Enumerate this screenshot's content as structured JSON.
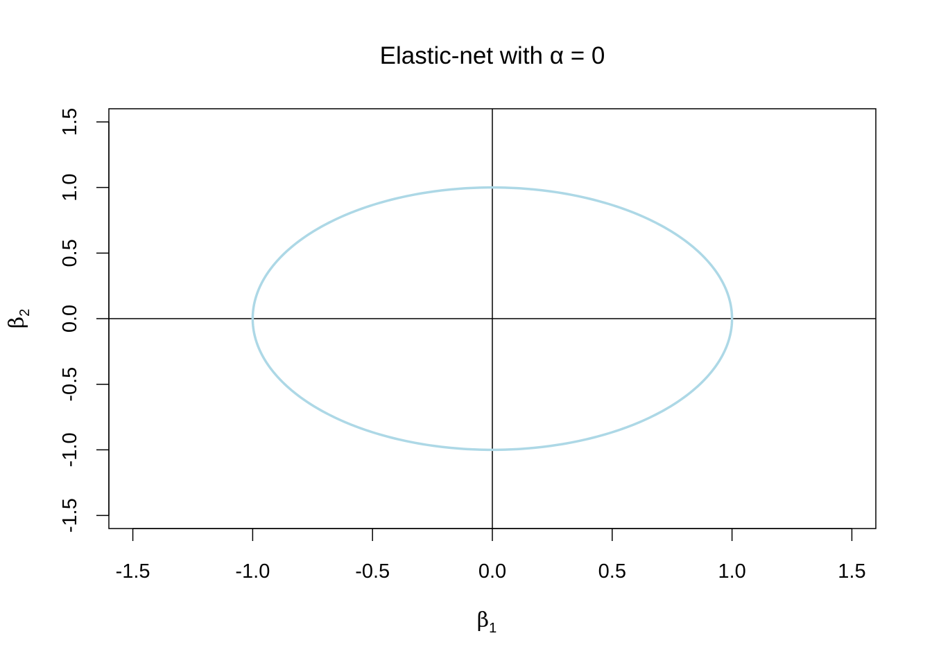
{
  "chart_data": {
    "type": "line",
    "title": "Elastic-net with α = 0",
    "xlabel": "β",
    "xlabel_sub": "1",
    "ylabel": "β",
    "ylabel_sub": "2",
    "xlim": [
      -1.6,
      1.6
    ],
    "ylim": [
      -1.6,
      1.6
    ],
    "xticks": [
      -1.5,
      -1.0,
      -0.5,
      0.0,
      0.5,
      1.0,
      1.5
    ],
    "xtick_labels": [
      "-1.5",
      "-1.0",
      "-0.5",
      "0.0",
      "0.5",
      "1.0",
      "1.5"
    ],
    "yticks": [
      -1.5,
      -1.0,
      -0.5,
      0.0,
      0.5,
      1.0,
      1.5
    ],
    "ytick_labels": [
      "-1.5",
      "-1.0",
      "-0.5",
      "0.0",
      "0.5",
      "1.0",
      "1.5"
    ],
    "grid": false,
    "reference_lines": {
      "x": 0,
      "y": 0
    },
    "series": [
      {
        "shape": "unit circle |β1|^2 + |β2|^2 = 1",
        "color": "#add8e6",
        "x": [
          1.0,
          0.966,
          0.866,
          0.707,
          0.5,
          0.259,
          0.0,
          -0.259,
          -0.5,
          -0.707,
          -0.866,
          -0.966,
          -1.0,
          -0.966,
          -0.866,
          -0.707,
          -0.5,
          -0.259,
          0.0,
          0.259,
          0.5,
          0.707,
          0.866,
          0.966,
          1.0
        ],
        "y": [
          0.0,
          0.259,
          0.5,
          0.707,
          0.866,
          0.966,
          1.0,
          0.966,
          0.866,
          0.707,
          0.5,
          0.259,
          0.0,
          -0.259,
          -0.5,
          -0.707,
          -0.866,
          -0.966,
          -1.0,
          -0.966,
          -0.866,
          -0.707,
          -0.5,
          -0.259,
          0.0
        ]
      }
    ]
  }
}
